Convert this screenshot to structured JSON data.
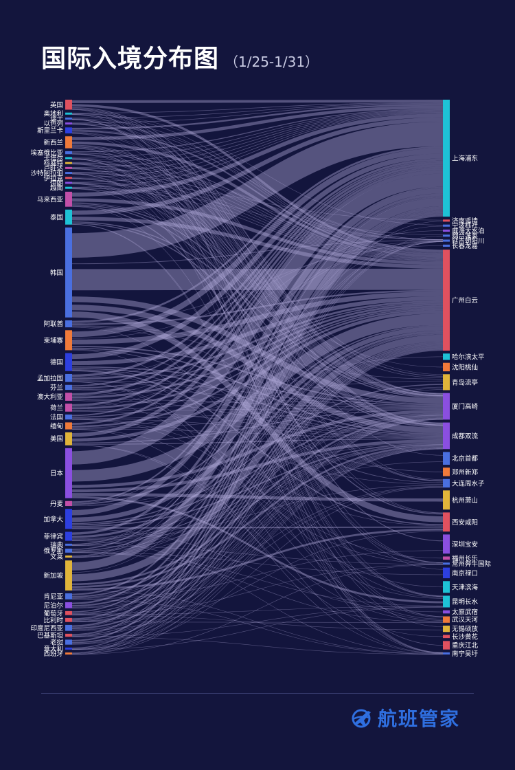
{
  "header": {
    "title": "国际入境分布图",
    "subtitle": "（1/25-1/31）"
  },
  "brand": {
    "name": "航班管家",
    "logo_icon": "plane-globe-icon",
    "color": "#2f6fe0"
  },
  "colors": {
    "background": "#13153d",
    "link": "#b0a9d8",
    "divider": "#3a3e72"
  },
  "sources": [
    {
      "name": "英国",
      "value": 2,
      "color": "#e0515f"
    },
    {
      "name": "奥地利",
      "value": 0.4,
      "color": "#1ec2d6"
    },
    {
      "name": "瑞士",
      "value": 0.4,
      "color": "#4a6fe0"
    },
    {
      "name": "以色列",
      "value": 0.4,
      "color": "#8a4fe0"
    },
    {
      "name": "斯里兰卡",
      "value": 1.2,
      "color": "#2d3fe0"
    },
    {
      "name": "新西兰",
      "value": 2.4,
      "color": "#f07a3a"
    },
    {
      "name": "埃塞俄比亚",
      "value": 0.6,
      "color": "#4a6fe0"
    },
    {
      "name": "卡塔尔",
      "value": 0.4,
      "color": "#1ec2d6"
    },
    {
      "name": "科威特",
      "value": 0.4,
      "color": "#e0b43a"
    },
    {
      "name": "卢旺达",
      "value": 0.4,
      "color": "#c24fa8"
    },
    {
      "name": "沙特阿拉伯",
      "value": 0.4,
      "color": "#4a6fe0"
    },
    {
      "name": "伊拉克",
      "value": 0.4,
      "color": "#e0515f"
    },
    {
      "name": "伊朗",
      "value": 0.4,
      "color": "#8a4fe0"
    },
    {
      "name": "越南",
      "value": 0.4,
      "color": "#1ec2d6"
    },
    {
      "name": "马来西亚",
      "value": 3,
      "color": "#c24fa8"
    },
    {
      "name": "泰国",
      "value": 3,
      "color": "#1ec2d6"
    },
    {
      "name": "韩国",
      "value": 18,
      "color": "#4a6fe0"
    },
    {
      "name": "阿联酋",
      "value": 1.4,
      "color": "#4a6fe0"
    },
    {
      "name": "柬埔寨",
      "value": 4,
      "color": "#f07a3a"
    },
    {
      "name": "德国",
      "value": 3.6,
      "color": "#2d3fe0"
    },
    {
      "name": "孟加拉国",
      "value": 1.6,
      "color": "#4a6fe0"
    },
    {
      "name": "芬兰",
      "value": 1,
      "color": "#4a6fe0"
    },
    {
      "name": "澳大利亚",
      "value": 1.6,
      "color": "#c24fa8"
    },
    {
      "name": "荷兰",
      "value": 1.6,
      "color": "#c24fa8"
    },
    {
      "name": "法国",
      "value": 1,
      "color": "#4a6fe0"
    },
    {
      "name": "缅甸",
      "value": 1.4,
      "color": "#f07a3a"
    },
    {
      "name": "美国",
      "value": 2.6,
      "color": "#e0b43a"
    },
    {
      "name": "日本",
      "value": 10,
      "color": "#8a4fe0"
    },
    {
      "name": "丹麦",
      "value": 1,
      "color": "#c24fa8"
    },
    {
      "name": "加拿大",
      "value": 4,
      "color": "#2d3fe0"
    },
    {
      "name": "菲律宾",
      "value": 1.8,
      "color": "#2d3fe0"
    },
    {
      "name": "瑞典",
      "value": 0.4,
      "color": "#4a6fe0"
    },
    {
      "name": "俄罗斯",
      "value": 0.8,
      "color": "#4a6fe0"
    },
    {
      "name": "文莱",
      "value": 0.4,
      "color": "#e0b43a"
    },
    {
      "name": "新加坡",
      "value": 6,
      "color": "#e0b43a"
    },
    {
      "name": "肯尼亚",
      "value": 1.2,
      "color": "#4a6fe0"
    },
    {
      "name": "尼泊尔",
      "value": 1.2,
      "color": "#8a4fe0"
    },
    {
      "name": "葡萄牙",
      "value": 0.8,
      "color": "#e0515f"
    },
    {
      "name": "比利时",
      "value": 0.8,
      "color": "#e0515f"
    },
    {
      "name": "印度尼西亚",
      "value": 1.2,
      "color": "#4a6fe0"
    },
    {
      "name": "巴基斯坦",
      "value": 0.6,
      "color": "#e0515f"
    },
    {
      "name": "老挝",
      "value": 1,
      "color": "#4a6fe0"
    },
    {
      "name": "意大利",
      "value": 0.4,
      "color": "#2d3fe0"
    },
    {
      "name": "西班牙",
      "value": 0.4,
      "color": "#f07a3a"
    }
  ],
  "targets": [
    {
      "name": "上海浦东",
      "value": 22,
      "color": "#1ec2d6"
    },
    {
      "name": "济南遥墙",
      "value": 0.4,
      "color": "#e0515f"
    },
    {
      "name": "宁波栎社",
      "value": 0.4,
      "color": "#4a6fe0"
    },
    {
      "name": "威海大水泊",
      "value": 0.4,
      "color": "#8a4fe0"
    },
    {
      "name": "烟台蓬莱",
      "value": 0.4,
      "color": "#4a6fe0"
    },
    {
      "name": "延吉朝阳川",
      "value": 0.4,
      "color": "#4a6fe0"
    },
    {
      "name": "长春龙嘉",
      "value": 0.4,
      "color": "#4a6fe0"
    },
    {
      "name": "广州白云",
      "value": 19,
      "color": "#e0515f"
    },
    {
      "name": "哈尔滨太平",
      "value": 1.2,
      "color": "#1ec2d6"
    },
    {
      "name": "沈阳桃仙",
      "value": 1.6,
      "color": "#f07a3a"
    },
    {
      "name": "青岛流亭",
      "value": 3,
      "color": "#e0b43a"
    },
    {
      "name": "厦门高崎",
      "value": 5,
      "color": "#8a4fe0"
    },
    {
      "name": "成都双流",
      "value": 5,
      "color": "#8a4fe0"
    },
    {
      "name": "北京首都",
      "value": 2.4,
      "color": "#4a6fe0"
    },
    {
      "name": "郑州新郑",
      "value": 1.6,
      "color": "#f07a3a"
    },
    {
      "name": "大连周水子",
      "value": 1.6,
      "color": "#4a6fe0"
    },
    {
      "name": "杭州萧山",
      "value": 3.6,
      "color": "#e0b43a"
    },
    {
      "name": "西安咸阳",
      "value": 3.6,
      "color": "#e0515f"
    },
    {
      "name": "深圳宝安",
      "value": 3.6,
      "color": "#8a4fe0"
    },
    {
      "name": "福州长乐",
      "value": 0.6,
      "color": "#c24fa8"
    },
    {
      "name": "常州奔牛国际",
      "value": 0.4,
      "color": "#4a6fe0"
    },
    {
      "name": "南京禄口",
      "value": 2,
      "color": "#2d3fe0"
    },
    {
      "name": "天津滨海",
      "value": 2.2,
      "color": "#1ec2d6"
    },
    {
      "name": "昆明长水",
      "value": 2.2,
      "color": "#1ec2d6"
    },
    {
      "name": "太原武宿",
      "value": 0.6,
      "color": "#8a4fe0"
    },
    {
      "name": "武汉天河",
      "value": 1.2,
      "color": "#f07a3a"
    },
    {
      "name": "无锡硕放",
      "value": 1.2,
      "color": "#e0b43a"
    },
    {
      "name": "长沙黄花",
      "value": 0.6,
      "color": "#e0515f"
    },
    {
      "name": "重庆江北",
      "value": 1.6,
      "color": "#e0515f"
    },
    {
      "name": "南宁吴圩",
      "value": 0.4,
      "color": "#4a6fe0"
    }
  ]
}
